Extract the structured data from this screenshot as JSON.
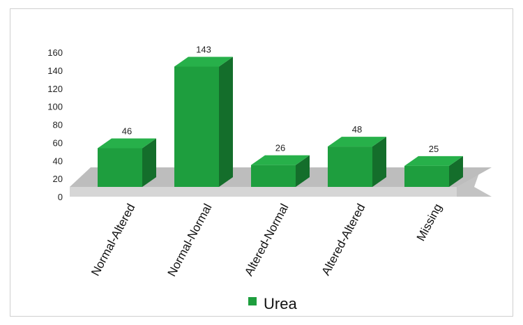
{
  "chart_data": {
    "type": "bar",
    "categories": [
      "Normal-Altered",
      "Normal-Normal",
      "Altered-Normal",
      "Altered-Altered",
      "Missing"
    ],
    "series": [
      {
        "name": "Urea",
        "values": [
          46,
          143,
          26,
          48,
          25
        ],
        "color": "#1e9e3e"
      }
    ],
    "data_labels": [
      "46",
      "143",
      "26",
      "48",
      "25"
    ],
    "yticks": [
      "0",
      "20",
      "40",
      "60",
      "80",
      "100",
      "120",
      "140",
      "160"
    ],
    "ylim": [
      0,
      160
    ],
    "legend": {
      "position": "bottom",
      "label": "Urea"
    },
    "style": "3d",
    "grid": false
  }
}
